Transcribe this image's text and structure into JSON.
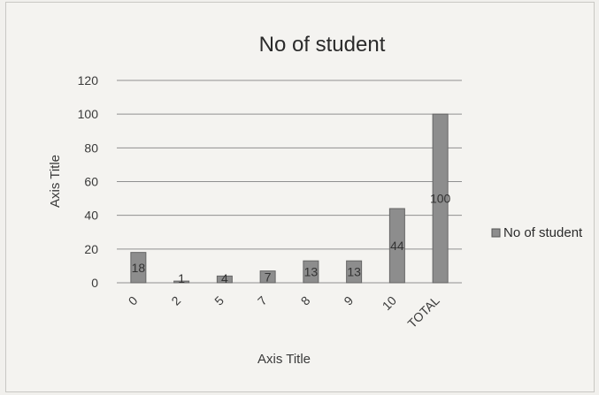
{
  "chart_data": {
    "type": "bar",
    "title": "No of student",
    "xlabel": "Axis Title",
    "ylabel": "Axis Title",
    "categories": [
      "0",
      "2",
      "5",
      "7",
      "8",
      "9",
      "10",
      "TOTAL"
    ],
    "series": [
      {
        "name": "No of student",
        "values": [
          18,
          1,
          4,
          7,
          13,
          13,
          44,
          100
        ],
        "color": "#8d8d8d"
      }
    ],
    "ylim": [
      0,
      120
    ],
    "yticks": [
      0,
      20,
      40,
      60,
      80,
      100,
      120
    ],
    "grid": true,
    "legend_position": "right"
  }
}
